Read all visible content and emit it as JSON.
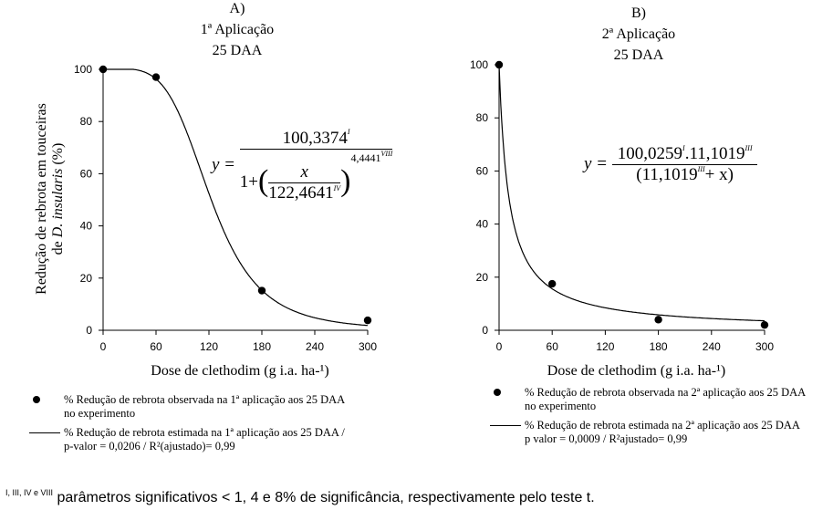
{
  "chart_data": [
    {
      "type": "scatter",
      "panel_label": "A)",
      "title": "1ª Aplicação",
      "subtitle": "25 DAA",
      "xlabel": "Dose de clethodim (g i.a. ha-¹)",
      "ylabel_line1": "Redução de rebrota em touceiras",
      "ylabel_line2_prefix": "de ",
      "ylabel_line2_italic": "D. insularis",
      "ylabel_line2_suffix": " (%)",
      "xlim": [
        0,
        300
      ],
      "ylim": [
        0,
        100
      ],
      "xticks": [
        0,
        60,
        120,
        180,
        240,
        300
      ],
      "yticks": [
        0,
        20,
        40,
        60,
        80,
        100
      ],
      "observed": {
        "x": [
          0,
          60,
          180,
          300
        ],
        "y": [
          100,
          97,
          15.2,
          3.8
        ]
      },
      "fit": {
        "model": "log-logistic",
        "a": 100.3374,
        "c": 122.4641,
        "b": 4.4441
      },
      "equation": {
        "lhs": "y =",
        "numerator": "100,3374",
        "numerator_sup": "I",
        "inner_num": "x",
        "inner_den": "122,4641",
        "inner_den_sup": "IV",
        "one_plus": "1+",
        "exponent": "4,4441",
        "exponent_sup": "VIII"
      },
      "legend": {
        "observed_line1": "% Redução de rebrota observada na 1ª aplicação aos 25 DAA",
        "observed_line2": "no experimento",
        "fit_line1": "% Redução de rebrota estimada na 1ª aplicação aos 25 DAA /",
        "fit_line2": "p-valor = 0,0206 / R²(ajustado)= 0,99"
      }
    },
    {
      "type": "scatter",
      "panel_label": "B)",
      "title": "2ª Aplicação",
      "subtitle": "25 DAA",
      "xlabel": "Dose de clethodim (g i.a. ha-¹)",
      "xlim": [
        0,
        300
      ],
      "ylim": [
        0,
        100
      ],
      "xticks": [
        0,
        60,
        120,
        180,
        240,
        300
      ],
      "yticks": [
        0,
        20,
        40,
        60,
        80,
        100
      ],
      "observed": {
        "x": [
          0,
          60,
          180,
          300
        ],
        "y": [
          100,
          17.5,
          4,
          2
        ]
      },
      "fit": {
        "model": "hyperbolic",
        "a": 100.0259,
        "b": 11.1019
      },
      "equation": {
        "lhs": "y =",
        "numerator": "100,0259",
        "numerator_sup": "I",
        "numerator2": ".11,1019",
        "numerator2_sup": "III",
        "den_left": "(11,1019",
        "den_sup": "III",
        "den_right": "+ x)"
      },
      "legend": {
        "observed_line1": "% Redução de rebrota observada na 2ª aplicação aos 25 DAA",
        "observed_line2": "no experimento",
        "fit_line1": "% Redução de rebrota estimada na 2ª aplicação aos 25 DAA",
        "fit_line2": "p valor = 0,0009 / R²ajustado= 0,99"
      }
    }
  ],
  "footnote": {
    "sup": "I, III, IV e VIII",
    "text": " parâmetros significativos < 1, 4 e 8% de significância, respectivamente pelo teste t."
  }
}
